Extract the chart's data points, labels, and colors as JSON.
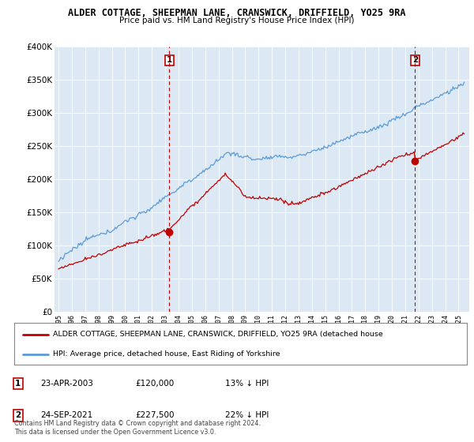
{
  "title": "ALDER COTTAGE, SHEEPMAN LANE, CRANSWICK, DRIFFIELD, YO25 9RA",
  "subtitle": "Price paid vs. HM Land Registry's House Price Index (HPI)",
  "ylim": [
    0,
    400000
  ],
  "yticks": [
    0,
    50000,
    100000,
    150000,
    200000,
    250000,
    300000,
    350000,
    400000
  ],
  "legend_line1": "ALDER COTTAGE, SHEEPMAN LANE, CRANSWICK, DRIFFIELD, YO25 9RA (detached house",
  "legend_line2": "HPI: Average price, detached house, East Riding of Yorkshire",
  "footnote": "Contains HM Land Registry data © Crown copyright and database right 2024.\nThis data is licensed under the Open Government Licence v3.0.",
  "sale1_label": "1",
  "sale1_date": "23-APR-2003",
  "sale1_price": "£120,000",
  "sale1_hpi": "13% ↓ HPI",
  "sale1_year": 2003.3,
  "sale1_value": 120000,
  "sale2_label": "2",
  "sale2_date": "24-SEP-2021",
  "sale2_price": "£227,500",
  "sale2_hpi": "22% ↓ HPI",
  "sale2_year": 2021.73,
  "sale2_value": 227500,
  "hpi_color": "#5b9bd5",
  "price_color": "#c00000",
  "dashed_color": "#c00000",
  "plot_bg_color": "#dce9f5",
  "background_color": "#ffffff",
  "grid_color": "#ffffff"
}
